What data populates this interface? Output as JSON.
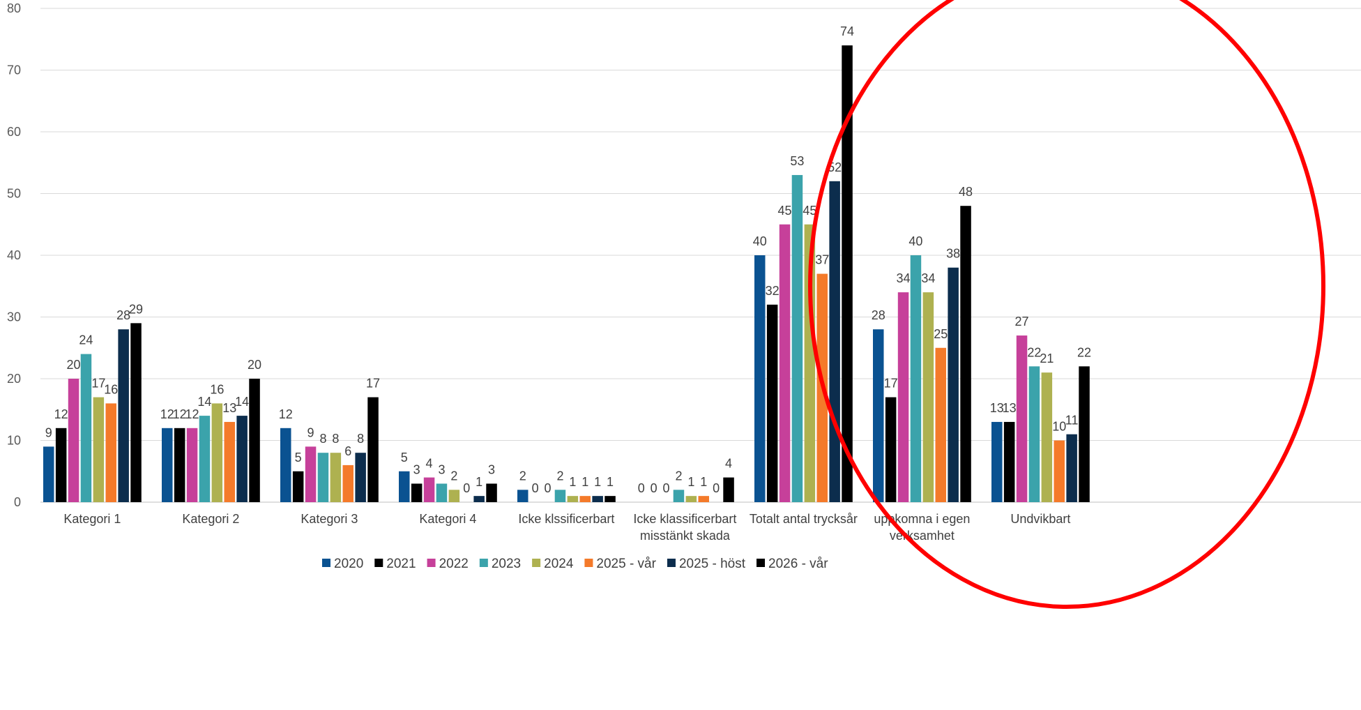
{
  "chart_data": {
    "type": "bar",
    "title": "",
    "xlabel": "",
    "ylabel": "",
    "ylim": [
      0,
      80
    ],
    "yticks": [
      0,
      10,
      20,
      30,
      40,
      50,
      60,
      70,
      80
    ],
    "grid": true,
    "legend_position": "bottom",
    "categories": [
      [
        "Kategori 1"
      ],
      [
        "Kategori 2"
      ],
      [
        "Kategori 3"
      ],
      [
        "Kategori 4"
      ],
      [
        "Icke klssificerbart"
      ],
      [
        "Icke klassificerbart",
        "misstänkt skada"
      ],
      [
        "Totalt antal trycksår"
      ],
      [
        "uppkomna i egen",
        "verksamhet"
      ],
      [
        "Undvikbart"
      ]
    ],
    "series": [
      {
        "name": "2020",
        "color": "#0a5291",
        "values": [
          9,
          12,
          12,
          5,
          2,
          0,
          40,
          28,
          13
        ]
      },
      {
        "name": "2021",
        "color": "#000000",
        "values": [
          12,
          12,
          5,
          3,
          0,
          0,
          32,
          17,
          13
        ]
      },
      {
        "name": "2022",
        "color": "#c6409a",
        "values": [
          20,
          12,
          9,
          4,
          0,
          0,
          45,
          34,
          27
        ]
      },
      {
        "name": "2023",
        "color": "#3ba3ab",
        "values": [
          24,
          14,
          8,
          3,
          2,
          2,
          53,
          40,
          22
        ]
      },
      {
        "name": "2024",
        "color": "#aeb150",
        "values": [
          17,
          16,
          8,
          2,
          1,
          1,
          45,
          34,
          21
        ]
      },
      {
        "name": "2025 - vår",
        "color": "#f47a2a",
        "values": [
          16,
          13,
          6,
          0,
          1,
          1,
          37,
          25,
          10
        ]
      },
      {
        "name": "2025 - höst",
        "color": "#0c2d4d",
        "values": [
          28,
          14,
          8,
          1,
          1,
          0,
          52,
          38,
          11
        ]
      },
      {
        "name": "2026 - vår",
        "color": "#000000",
        "values": [
          29,
          20,
          17,
          3,
          1,
          4,
          74,
          48,
          22
        ]
      }
    ],
    "annotations": [
      {
        "type": "ellipse",
        "color": "#ff0000",
        "description": "red hand-drawn circle around the right-hand categories"
      }
    ]
  }
}
